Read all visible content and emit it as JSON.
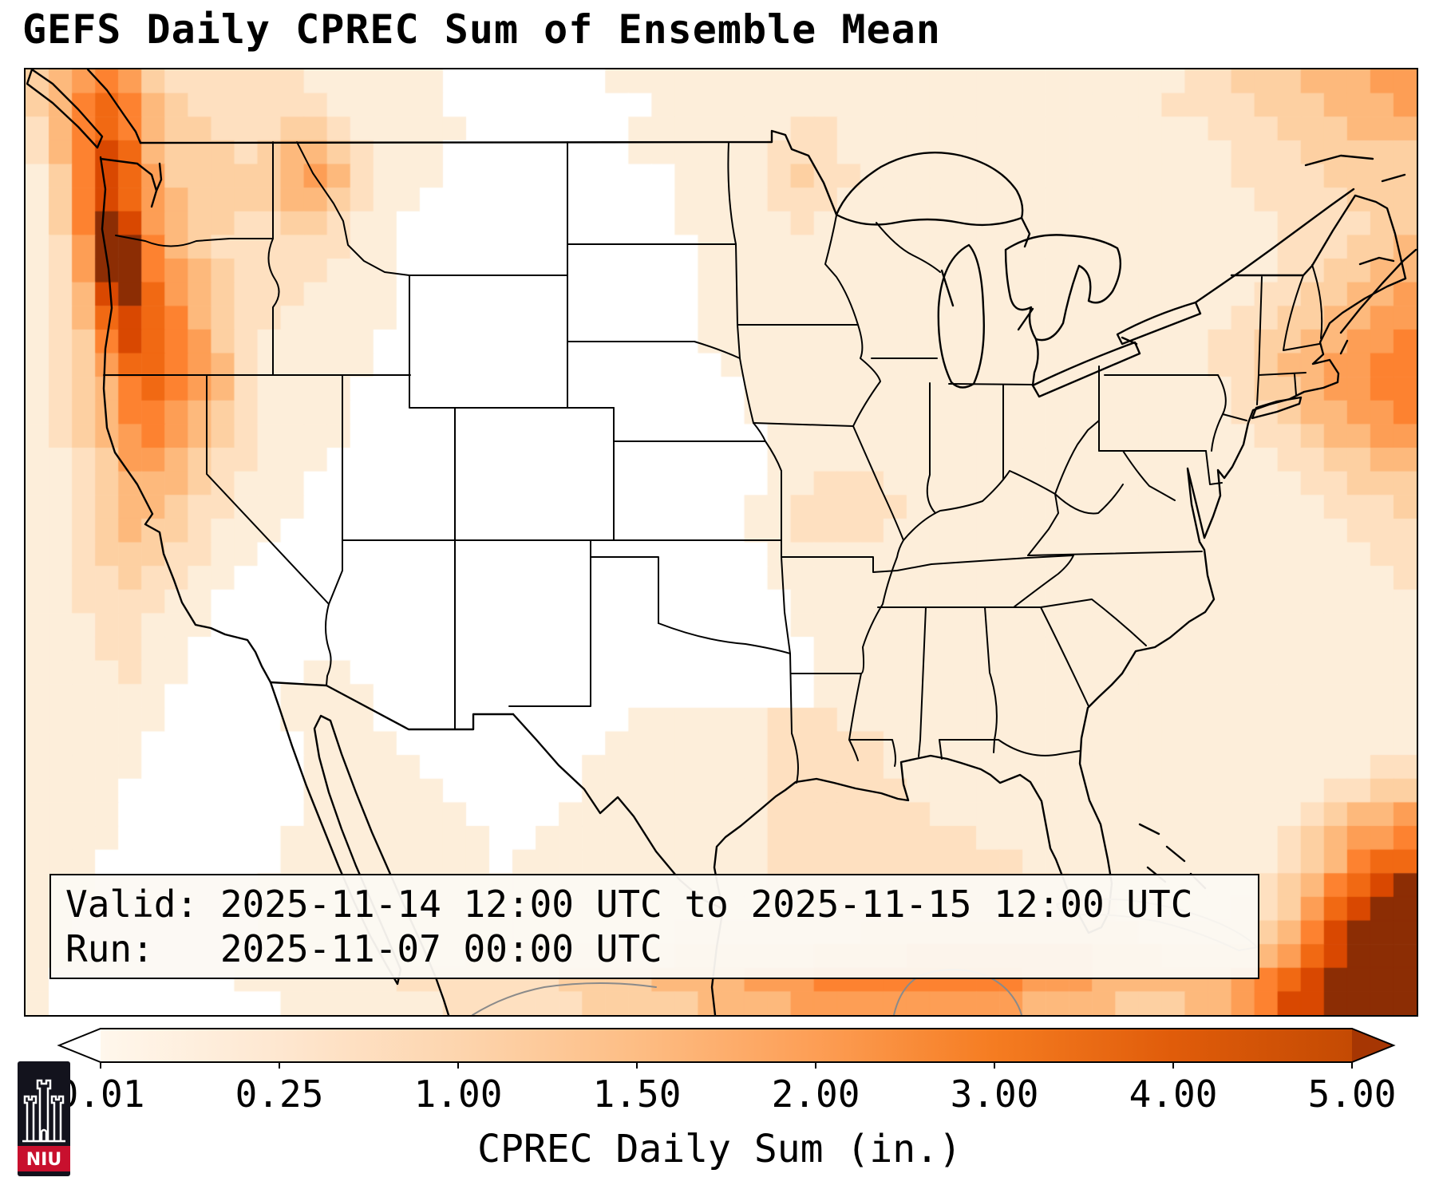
{
  "title": "GEFS Daily CPREC Sum of Ensemble Mean",
  "info_box": {
    "line1": "Valid: 2025-11-14 12:00 UTC to 2025-11-15 12:00 UTC",
    "line2": "Run:   2025-11-07 00:00 UTC"
  },
  "colorbar": {
    "label": "CPREC Daily Sum (in.)",
    "ticks": [
      "0.01",
      "0.25",
      "1.00",
      "1.50",
      "2.00",
      "3.00",
      "4.00",
      "5.00"
    ],
    "tick_colors": [
      "#fff7ec",
      "#fee7d0",
      "#fdd5ae",
      "#fdbd84",
      "#fd9e55",
      "#f57c21",
      "#e05c0a",
      "#c44a03"
    ],
    "under_color": "#ffffff",
    "over_color": "#a63603"
  },
  "logo": {
    "text": "NIU",
    "bg": "#13131d",
    "band": "#c8102e"
  },
  "chart_data": {
    "type": "heatmap",
    "title": "GEFS Daily CPREC Sum of Ensemble Mean",
    "units": "inches",
    "legend_bins": [
      "<0.01",
      "0.01-0.25",
      "0.25-1.00",
      "1.00-1.50",
      "1.50-2.00",
      "2.00-3.00",
      "3.00-4.00",
      "4.00-5.00",
      ">5.00"
    ],
    "grid_note": "estimated precipitation intensity levels 0-9 read from the map shading, 60 cols x 40 rows, CONUS view",
    "palette": [
      "#ffffff",
      "#fdeeda",
      "#fee0c0",
      "#fdd0a2",
      "#fdb97c",
      "#fd9e55",
      "#fd8230",
      "#f16913",
      "#d94801",
      "#8c2d04"
    ],
    "grid": [
      "345653222222111111000000011111111111111111111111112233344455",
      "346764322222211111000000000111111111111111111111122223334445",
      "246764332223321111100000001111111221111111111111111222333444",
      "246874333234432111000000001111112221111111111111111122233333",
      "136875333334542111000000000011112322111111111111111122223333",
      "136875433334432110000000000011112221111111111111111112222333",
      "136985433223321100000000000011111211111111111111111111222233",
      "125996432222221100000000000001111111111111111111111111222334",
      "125996543222211100000000000001111111111111111111111111223344",
      "124897543222111100000000000001111111111111111111111112233445",
      "124787643221111100000000000001111111111111111111111122334455",
      "123687653211111000000000000001111111111111111111111223344556",
      "123577654211111000000000000000111111111111111111111223445566",
      "123467654211110000000000000000011111111111111111111123345566",
      "123466543211110000000000000000011111111111111111111122344556",
      "123456543211110000000000000000001111111111111111111112234455",
      "112355432211100000000000000000001111111111111111111111223344",
      "112344432111000000000000000000001122211111111111111111122333",
      "112344322111000000000000000000011222221111111111111111112223",
      "112343321110000000000000000000011222211111111111111111111222",
      "112333221100000000000000000000001111111111111111111111111122",
      "112232211000000000000000000000001111111111111111111111111112",
      "112222110000000000000000000000000111111111111111111111111111",
      "111221110000000000000000000000000111111111111111111111111111",
      "111221100000000000000000000000000011111111111111111111111111",
      "111121100000110000000000000000000011111111111111111111111111",
      "111111000001111000000000000000000011111111111111111111111111",
      "111111000001111000000000001111112221111111111111111111111111",
      "111110000000111100000000011111112222211111111111111111111111",
      "111110000000111110000000111111112222211111111111111111111122",
      "111100000000111111000000111111112222221111111111111111112233",
      "111100000000111111100001111111112222222111111111111111123445",
      "111100000001111111110011111111112222222221111111111111234556",
      "111000000001111111110111111111112222222222211111111111234677",
      "111000000011111111111111111111112222222222222111111112346789",
      "110000000011111111111111111111112222222222222221111122357899",
      "110000000011111111111111111122222222333333333333222223468999",
      "110000000011111111122222222233333344445555555544433334578999",
      "100000000111111122222223333444455566666666655544444456789999",
      "100000000001111111222222333334444555555555544443334456889999"
    ]
  }
}
